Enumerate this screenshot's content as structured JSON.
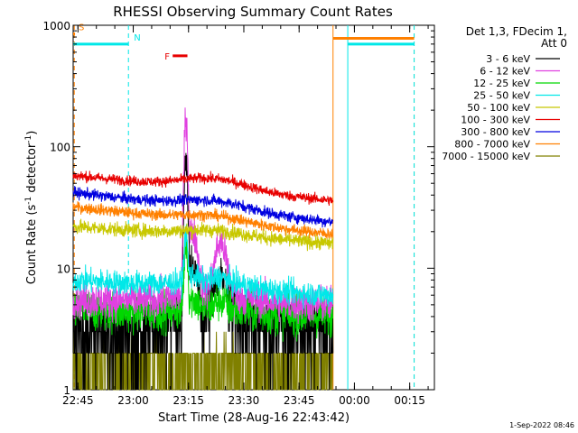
{
  "chart_data": {
    "type": "line",
    "title": "RHESSI Observing Summary Count Rates",
    "xlabel": "Start Time (28-Aug-16 22:43:42)",
    "ylabel_main": "Count Rate (s",
    "ylabel_sup1": "-1",
    "ylabel_mid": " detector",
    "ylabel_sup2": "-1",
    "ylabel_end": ")",
    "y_scale": "log",
    "ylim": [
      1,
      1000
    ],
    "y_ticks": [
      {
        "value": 1,
        "label": "1"
      },
      {
        "value": 10,
        "label": "10"
      },
      {
        "value": 100,
        "label": "100"
      },
      {
        "value": 1000,
        "label": "1000"
      }
    ],
    "x_ticks": [
      "22:45",
      "23:00",
      "23:15",
      "23:30",
      "23:45",
      "00:00",
      "00:15"
    ],
    "x_tick_minutes": [
      1.3,
      16.3,
      31.3,
      46.3,
      61.3,
      76.3,
      91.3
    ],
    "xlim_minutes": [
      0,
      98
    ],
    "data_end_minute": 70.5,
    "legend_header": [
      "Det 1,3, FDecim 1,",
      "Att 0"
    ],
    "legend_position": "top-right",
    "series": [
      {
        "name": "3 - 6 keV",
        "color": "#000000",
        "base": 3.0,
        "end": 3.0,
        "bump": 1.2,
        "flare": 80,
        "noise": 0.35
      },
      {
        "name": "6 - 12 keV",
        "color": "#e040e0",
        "base": 5.5,
        "end": 5.0,
        "bump": 1.0,
        "flare": 170,
        "noise": 0.18
      },
      {
        "name": "12 - 25 keV",
        "color": "#00d800",
        "base": 4.5,
        "end": 4.0,
        "bump": 0.5,
        "flare": 12,
        "noise": 0.2
      },
      {
        "name": "25 - 50 keV",
        "color": "#00e8e8",
        "base": 8.0,
        "end": 6.0,
        "bump": 1.0,
        "flare": 12,
        "noise": 0.12
      },
      {
        "name": "50 - 100 keV",
        "color": "#c8c800",
        "base": 22,
        "end": 16,
        "bump": 2.0,
        "flare": 0,
        "noise": 0.07
      },
      {
        "name": "100 - 300 keV",
        "color": "#e80000",
        "base": 58,
        "end": 36,
        "bump": 10,
        "flare": 0,
        "noise": 0.05
      },
      {
        "name": "300 - 800 keV",
        "color": "#0000e0",
        "base": 42,
        "end": 24,
        "bump": 5,
        "flare": 0,
        "noise": 0.055
      },
      {
        "name": "800 - 7000 keV",
        "color": "#ff8000",
        "base": 32,
        "end": 19,
        "bump": 3,
        "flare": 0,
        "noise": 0.055
      },
      {
        "name": "7000 - 15000 keV",
        "color": "#808000",
        "base": 1.5,
        "end": 1.5,
        "bump": 0,
        "flare": 0,
        "noise": 0.3
      }
    ],
    "flags": [
      {
        "label": "S",
        "color": "#ff8000",
        "start": 0,
        "end": 0.5,
        "level": 850
      },
      {
        "label": "N",
        "color": "#00e8e8",
        "start": 0,
        "end": 15,
        "level": 700
      },
      {
        "label": "F",
        "color": "#e80000",
        "start": 27,
        "end": 31,
        "level": 560
      },
      {
        "label": "",
        "color": "#ff8000",
        "start": 70.5,
        "end": 92.5,
        "level": 780
      },
      {
        "label": "",
        "color": "#00e8e8",
        "start": 74.5,
        "end": 92.5,
        "level": 700
      }
    ],
    "vertical_lines": [
      {
        "minute": 0.3,
        "color": "#ff8000",
        "style": "dashed"
      },
      {
        "minute": 15,
        "color": "#00e8e8",
        "style": "dashed"
      },
      {
        "minute": 70.5,
        "color": "#ff8000",
        "style": "solid"
      },
      {
        "minute": 74.5,
        "color": "#00e8e8",
        "style": "solid"
      },
      {
        "minute": 92.5,
        "color": "#ff8000",
        "style": "dashed"
      },
      {
        "minute": 92.5,
        "color": "#00e8e8",
        "style": "dashed"
      }
    ],
    "grid": false
  },
  "footer_timestamp": "1-Sep-2022 08:46"
}
